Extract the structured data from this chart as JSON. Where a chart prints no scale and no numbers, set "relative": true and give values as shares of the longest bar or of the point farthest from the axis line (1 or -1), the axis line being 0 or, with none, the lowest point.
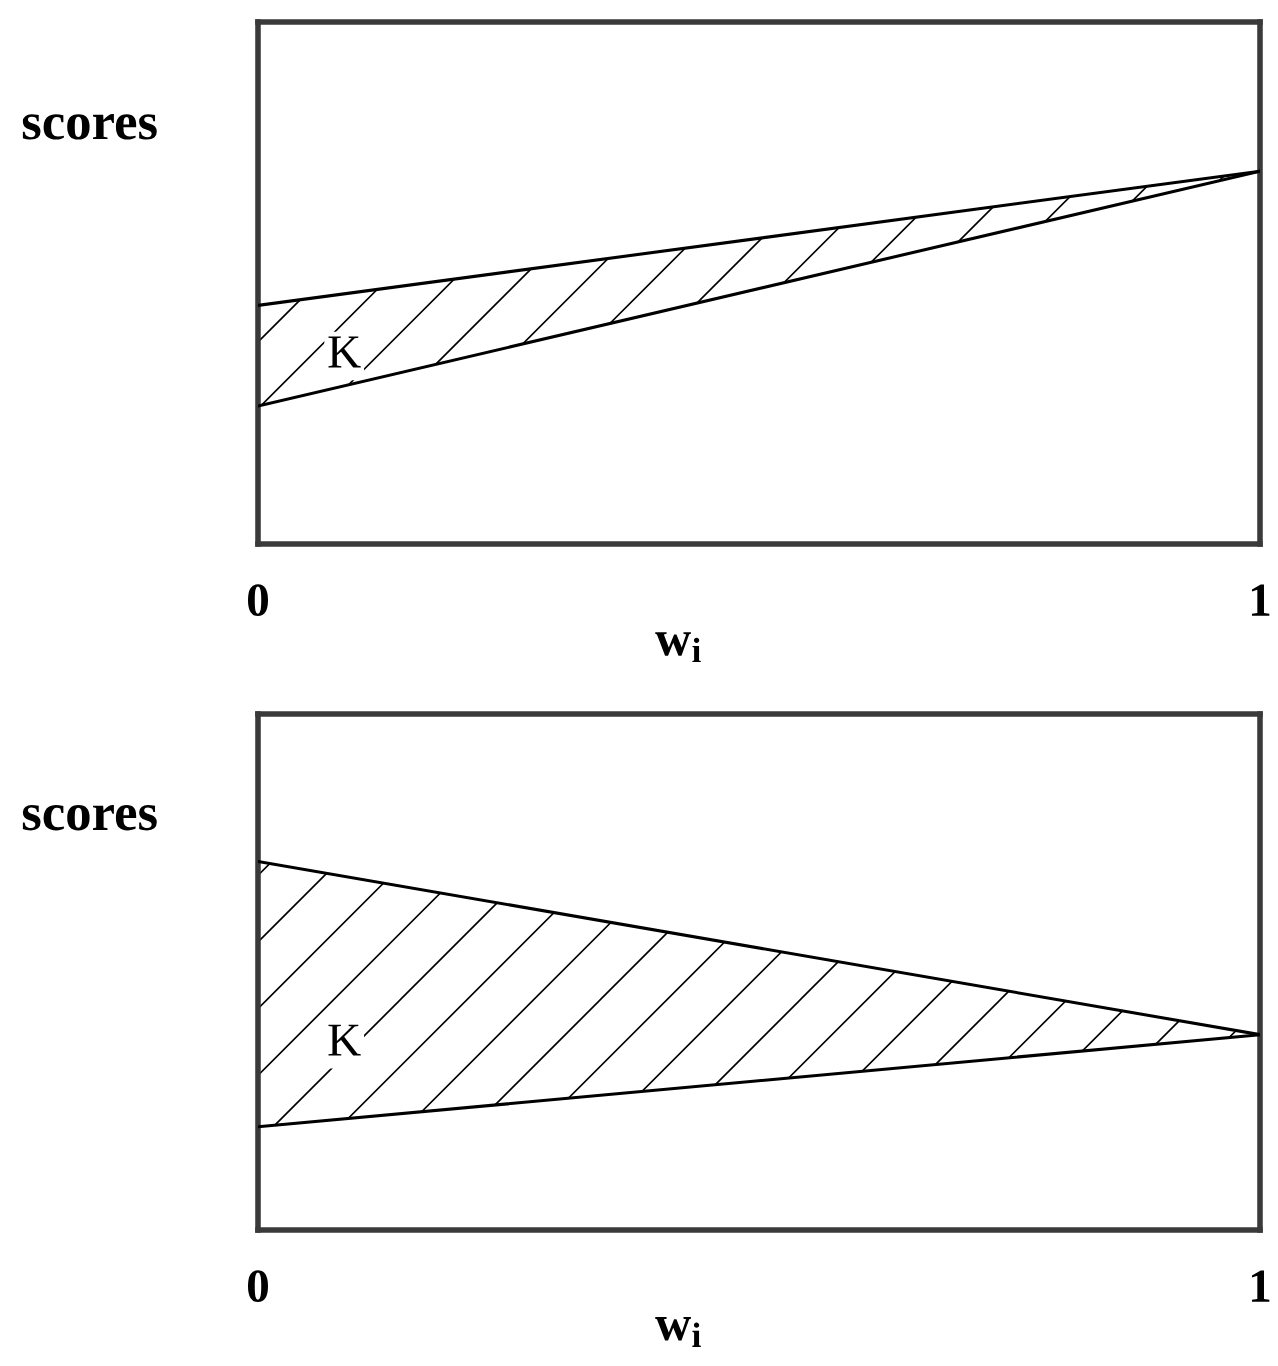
{
  "chart_data": [
    {
      "type": "line",
      "relative": true,
      "categories": [
        "0",
        "1"
      ],
      "xlabel": "w$_{i}$",
      "ylabel": "scores",
      "series": [
        {
          "color": "#000000",
          "values": [
            0.64,
            1
          ],
          "lower": [
            0.37,
            1
          ],
          "upper": [
            0.64,
            1
          ]
        },
        {
          "color": "#000000",
          "values": [
            0.37,
            1
          ]
        }
      ],
      "annotations": [
        "K"
      ]
    },
    {
      "type": "line",
      "relative": true,
      "categories": [
        "0",
        "1"
      ],
      "xlabel": "w$_{i}$",
      "ylabel": "scores",
      "series": [
        {
          "color": "#000000",
          "values": [
            1,
            0.53
          ],
          "lower": [
            0.28,
            0.53
          ],
          "upper": [
            1,
            0.53
          ]
        },
        {
          "color": "#000000",
          "values": [
            0.28,
            0.53
          ]
        }
      ],
      "annotations": [
        "K"
      ]
    }
  ]
}
